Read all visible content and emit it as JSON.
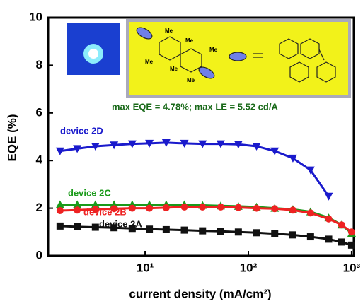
{
  "chart_data": {
    "type": "line",
    "xlabel": "current density (mA/cm²)",
    "ylabel": "EQE (%)",
    "annotation": "max EQE = 4.78%; max LE   = 5.52 cd/A",
    "inset_labels": [
      "Me",
      "Me",
      "Me",
      "Me",
      "Me",
      "Me"
    ],
    "log_x": true,
    "xlim": [
      1.15,
      1050
    ],
    "ylim": [
      0,
      10
    ],
    "xticks": [
      {
        "value": 10,
        "label": "10¹"
      },
      {
        "value": 100,
        "label": "10²"
      },
      {
        "value": 1000,
        "label": "10³"
      }
    ],
    "yticks": [
      0,
      2,
      4,
      6,
      8,
      10
    ],
    "x": [
      1.5,
      2.2,
      3.3,
      5,
      7.5,
      11,
      16,
      24,
      36,
      54,
      80,
      120,
      180,
      270,
      400,
      600,
      800,
      1000
    ],
    "series": [
      {
        "name": "device 2D",
        "color": "#1a1acc",
        "marker": "triangle-down",
        "values": [
          4.4,
          4.5,
          4.6,
          4.65,
          4.7,
          4.72,
          4.75,
          4.72,
          4.7,
          4.7,
          4.68,
          4.6,
          4.4,
          4.1,
          3.6,
          2.5,
          null,
          null
        ]
      },
      {
        "name": "device 2C",
        "color": "#1a9a1a",
        "marker": "triangle-up",
        "values": [
          2.15,
          2.15,
          2.15,
          2.15,
          2.15,
          2.15,
          2.15,
          2.15,
          2.12,
          2.1,
          2.08,
          2.05,
          2.0,
          1.95,
          1.85,
          1.6,
          1.3,
          0.95
        ]
      },
      {
        "name": "device 2B",
        "color": "#ee2222",
        "marker": "circle",
        "values": [
          1.9,
          1.92,
          1.95,
          1.98,
          2.0,
          2.0,
          2.02,
          2.05,
          2.05,
          2.05,
          2.03,
          2.0,
          1.98,
          1.92,
          1.8,
          1.55,
          1.3,
          1.0
        ]
      },
      {
        "name": "device 2A",
        "color": "#111111",
        "marker": "square",
        "values": [
          1.25,
          1.22,
          1.2,
          1.18,
          1.15,
          1.12,
          1.1,
          1.08,
          1.05,
          1.03,
          1.0,
          0.97,
          0.93,
          0.88,
          0.8,
          0.7,
          0.58,
          0.45
        ]
      }
    ]
  }
}
